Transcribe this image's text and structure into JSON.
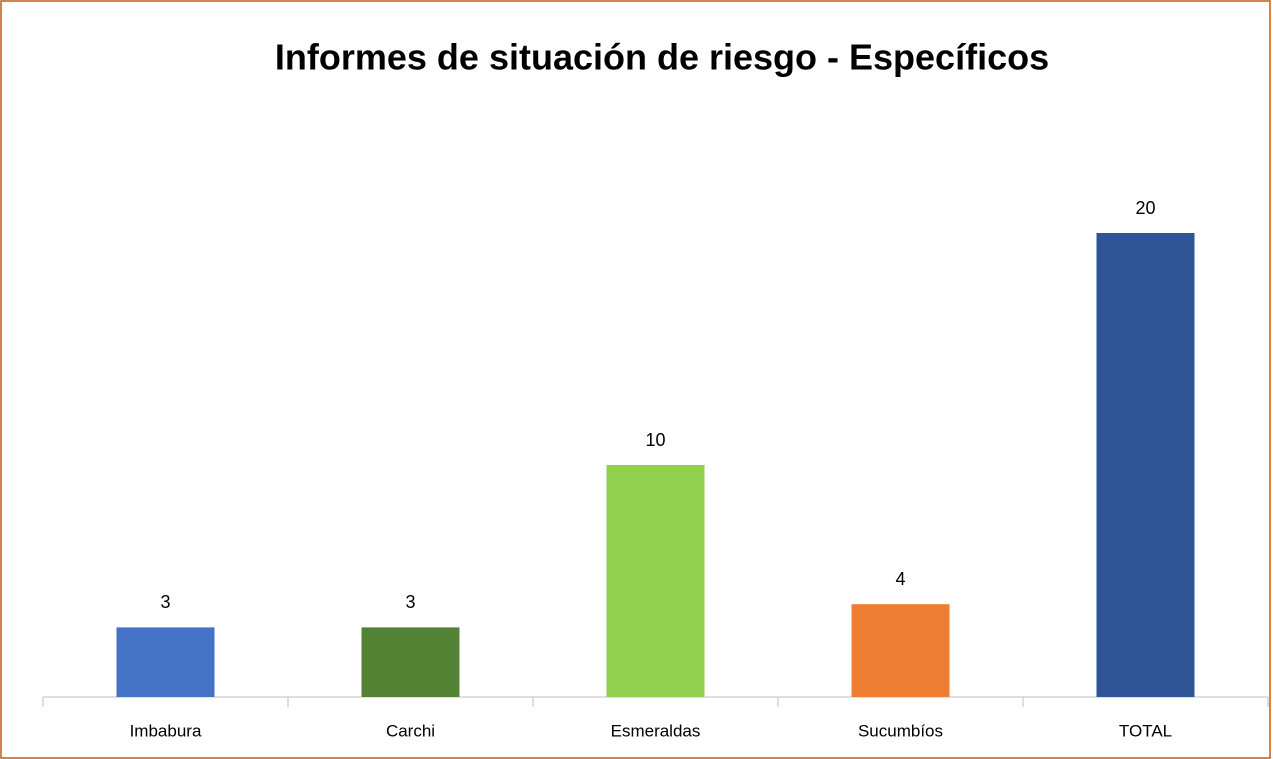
{
  "chart_data": {
    "type": "bar",
    "title": "Informes de situación de riesgo - Específicos",
    "categories": [
      "Imbabura",
      "Carchi",
      "Esmeraldas",
      "Sucumbíos",
      "TOTAL"
    ],
    "values": [
      3,
      3,
      10,
      4,
      20
    ],
    "colors": [
      "#4472c4",
      "#548235",
      "#92d050",
      "#ed7d31",
      "#2f5597"
    ]
  }
}
